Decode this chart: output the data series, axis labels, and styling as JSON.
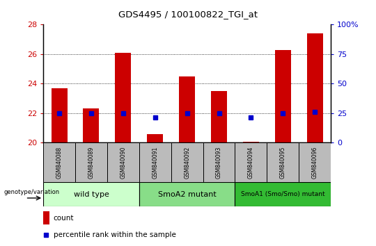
{
  "title": "GDS4495 / 100100822_TGI_at",
  "samples": [
    "GSM840088",
    "GSM840089",
    "GSM840090",
    "GSM840091",
    "GSM840092",
    "GSM840093",
    "GSM840094",
    "GSM840095",
    "GSM840096"
  ],
  "counts": [
    23.7,
    22.3,
    26.1,
    20.6,
    24.5,
    23.5,
    20.05,
    26.3,
    27.4
  ],
  "percentiles": [
    22.0,
    22.0,
    22.0,
    21.7,
    22.0,
    22.0,
    21.7,
    22.0,
    22.1
  ],
  "ylim_left": [
    20,
    28
  ],
  "ylim_right": [
    0,
    100
  ],
  "yticks_left": [
    20,
    22,
    24,
    26,
    28
  ],
  "yticks_right": [
    0,
    25,
    50,
    75,
    100
  ],
  "groups": [
    {
      "label": "wild type",
      "start": 0,
      "end": 3,
      "color": "#ccffcc"
    },
    {
      "label": "SmoA2 mutant",
      "start": 3,
      "end": 6,
      "color": "#88dd88"
    },
    {
      "label": "SmoA1 (Smo/Smo) mutant",
      "start": 6,
      "end": 9,
      "color": "#33bb33"
    }
  ],
  "bar_color": "#cc0000",
  "dot_color": "#0000cc",
  "tick_color_left": "#cc0000",
  "tick_color_right": "#0000cc",
  "grid_color": "#000000",
  "sample_bg_color": "#bbbbbb",
  "legend_count_color": "#cc0000",
  "legend_pct_color": "#0000cc"
}
